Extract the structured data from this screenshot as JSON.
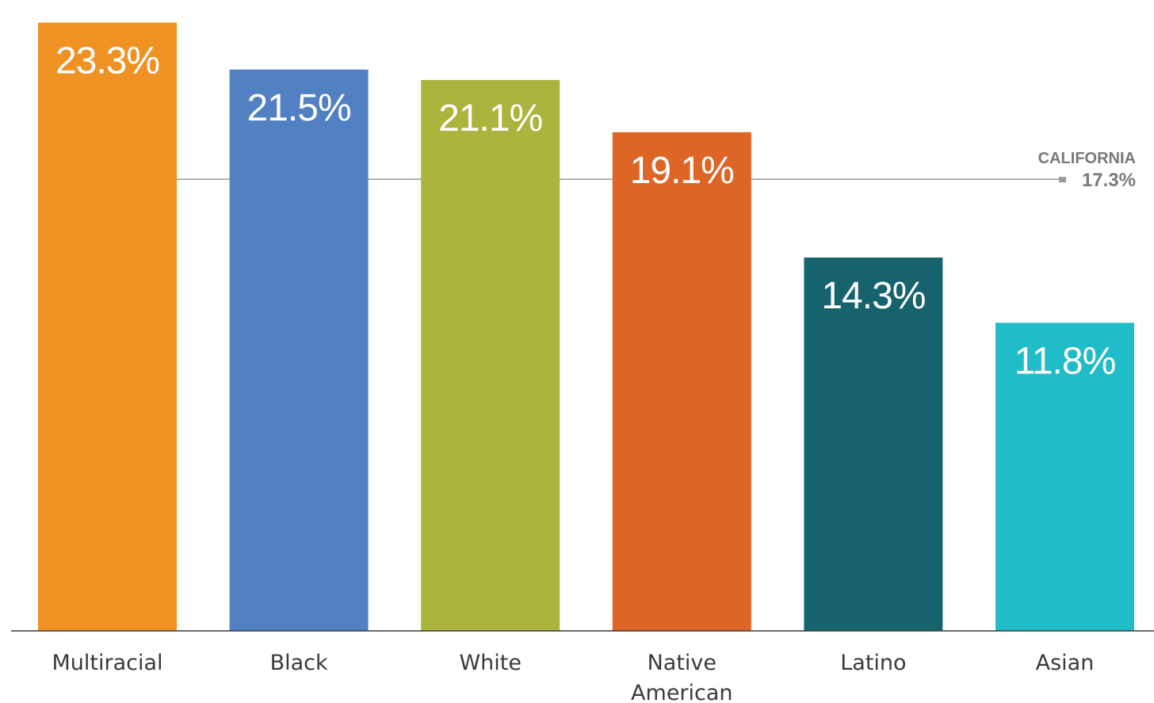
{
  "chart_data": {
    "type": "bar",
    "categories": [
      "Multiracial",
      "Black",
      "White",
      "Native American",
      "Latino",
      "Asian"
    ],
    "category_lines": [
      [
        "Multiracial"
      ],
      [
        "Black"
      ],
      [
        "White"
      ],
      [
        "Native",
        "American"
      ],
      [
        "Latino"
      ],
      [
        "Asian"
      ]
    ],
    "values": [
      23.3,
      21.5,
      21.1,
      19.1,
      14.3,
      11.8
    ],
    "value_labels": [
      "23.3%",
      "21.5%",
      "21.1%",
      "19.1%",
      "14.3%",
      "11.8%"
    ],
    "colors": [
      "#ef9223",
      "#5181c3",
      "#abb43c",
      "#dd6627",
      "#17636d",
      "#20bcc8"
    ],
    "ylim": [
      0,
      23.8
    ],
    "reference_line": {
      "label": "CALIFORNIA",
      "value": 17.3,
      "value_label": "17.3%",
      "color": "#9a9a9a"
    },
    "title": "",
    "xlabel": "",
    "ylabel": "",
    "grid": false,
    "legend": "none"
  }
}
